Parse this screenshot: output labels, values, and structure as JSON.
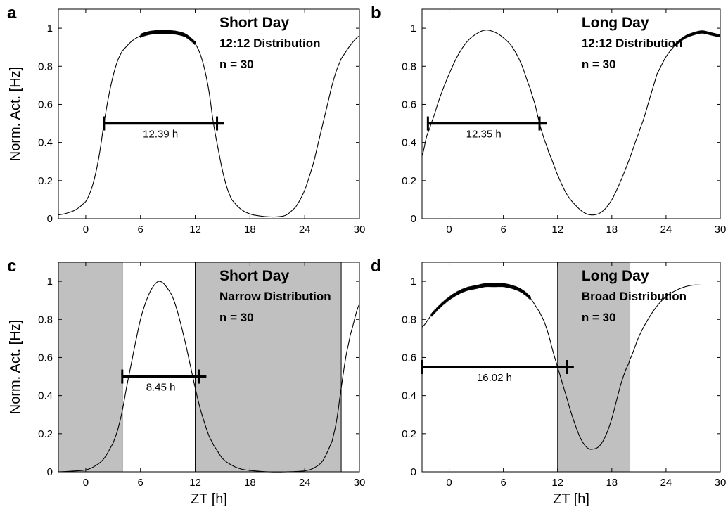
{
  "xlabel": "ZT [h]",
  "ylabel": "Norm. Act. [Hz]",
  "chart_data": [
    {
      "panel": "a",
      "type": "line",
      "title": "Short Day",
      "subtitle": "12:12 Distribution",
      "n_label": "n = 30",
      "xlim": [
        -3,
        30
      ],
      "ylim": [
        0,
        1.1
      ],
      "xticks": [
        0,
        6,
        12,
        18,
        24,
        30
      ],
      "yticks": [
        0,
        0.2,
        0.4,
        0.6,
        0.8,
        1
      ],
      "show_xlabel": false,
      "shaded_regions": [],
      "curve": {
        "x": [
          -3,
          -2,
          -1,
          0,
          0.5,
          1,
          1.5,
          2,
          2.5,
          3,
          3.5,
          4,
          5,
          6,
          7,
          8,
          9,
          10,
          11,
          12,
          12.5,
          13,
          13.5,
          14,
          14.5,
          15,
          15.5,
          16,
          17,
          18,
          19,
          20,
          21,
          22,
          23,
          23.5,
          24,
          24.5,
          25,
          25.5,
          26,
          26.5,
          27,
          27.5,
          28,
          29,
          30
        ],
        "y": [
          0.02,
          0.03,
          0.05,
          0.09,
          0.14,
          0.22,
          0.34,
          0.5,
          0.64,
          0.75,
          0.83,
          0.88,
          0.93,
          0.96,
          0.975,
          0.98,
          0.98,
          0.975,
          0.96,
          0.92,
          0.87,
          0.79,
          0.67,
          0.5,
          0.37,
          0.25,
          0.16,
          0.1,
          0.05,
          0.025,
          0.015,
          0.01,
          0.01,
          0.02,
          0.06,
          0.1,
          0.15,
          0.22,
          0.3,
          0.4,
          0.5,
          0.6,
          0.7,
          0.78,
          0.84,
          0.91,
          0.96
        ]
      },
      "wiggle": {
        "x_range": [
          6,
          12
        ],
        "amplitude": 0.01
      },
      "duration_bar": {
        "x_start": 2.0,
        "x_end": 14.39,
        "y": 0.5,
        "label": "12.39 h"
      }
    },
    {
      "panel": "b",
      "type": "line",
      "title": "Long Day",
      "subtitle": "12:12 Distribution",
      "n_label": "n = 30",
      "xlim": [
        -3,
        30
      ],
      "ylim": [
        0,
        1.1
      ],
      "xticks": [
        0,
        6,
        12,
        18,
        24,
        30
      ],
      "yticks": [
        0,
        0.2,
        0.4,
        0.6,
        0.8,
        1
      ],
      "show_xlabel": false,
      "shaded_regions": [],
      "curve": {
        "x": [
          -3,
          -2.5,
          -2,
          -1,
          0,
          1,
          2,
          3,
          4,
          5,
          6,
          7,
          8,
          9,
          9.5,
          10,
          10.5,
          11,
          12,
          13,
          14,
          15,
          16,
          17,
          18,
          19,
          20,
          21,
          21.5,
          22,
          22.5,
          23,
          24,
          25,
          26,
          27,
          28,
          29,
          30
        ],
        "y": [
          0.33,
          0.43,
          0.5,
          0.64,
          0.76,
          0.86,
          0.93,
          0.97,
          0.99,
          0.98,
          0.95,
          0.9,
          0.81,
          0.68,
          0.6,
          0.5,
          0.42,
          0.35,
          0.23,
          0.13,
          0.07,
          0.03,
          0.02,
          0.04,
          0.1,
          0.2,
          0.32,
          0.45,
          0.52,
          0.6,
          0.68,
          0.76,
          0.85,
          0.91,
          0.95,
          0.97,
          0.98,
          0.97,
          0.96
        ]
      },
      "wiggle": {
        "x_range": [
          25,
          30
        ],
        "amplitude": 0.008
      },
      "duration_bar": {
        "x_start": -2.35,
        "x_end": 10.0,
        "y": 0.5,
        "label": "12.35 h"
      }
    },
    {
      "panel": "c",
      "type": "line",
      "title": "Short Day",
      "subtitle": "Narrow Distribution",
      "n_label": "n = 30",
      "xlim": [
        -3,
        30
      ],
      "ylim": [
        0,
        1.1
      ],
      "xticks": [
        0,
        6,
        12,
        18,
        24,
        30
      ],
      "yticks": [
        0,
        0.2,
        0.4,
        0.6,
        0.8,
        1
      ],
      "show_xlabel": true,
      "shaded_regions": [
        [
          -3,
          4
        ],
        [
          12,
          28
        ]
      ],
      "curve": {
        "x": [
          -3,
          -1,
          0,
          1,
          2,
          3,
          3.5,
          4,
          4.5,
          5,
          5.5,
          6,
          6.5,
          7,
          7.5,
          8,
          8.5,
          9,
          9.5,
          10,
          10.5,
          11,
          11.5,
          12,
          12.5,
          13,
          13.5,
          14,
          15,
          16,
          17,
          18,
          20,
          22,
          24,
          25,
          26,
          27,
          27.5,
          28,
          28.5,
          29,
          30
        ],
        "y": [
          0.0,
          0.005,
          0.01,
          0.03,
          0.07,
          0.15,
          0.22,
          0.32,
          0.45,
          0.57,
          0.69,
          0.8,
          0.88,
          0.94,
          0.98,
          1.0,
          0.99,
          0.96,
          0.92,
          0.85,
          0.76,
          0.66,
          0.55,
          0.44,
          0.34,
          0.26,
          0.19,
          0.14,
          0.07,
          0.035,
          0.015,
          0.007,
          0.0,
          0.0,
          0.005,
          0.02,
          0.06,
          0.16,
          0.27,
          0.44,
          0.6,
          0.72,
          0.88
        ]
      },
      "wiggle": null,
      "duration_bar": {
        "x_start": 4.0,
        "x_end": 12.45,
        "y": 0.5,
        "label": "8.45 h"
      }
    },
    {
      "panel": "d",
      "type": "line",
      "title": "Long Day",
      "subtitle": "Broad Distribution",
      "n_label": "n = 30",
      "xlim": [
        -3,
        30
      ],
      "ylim": [
        0,
        1.1
      ],
      "xticks": [
        0,
        6,
        12,
        18,
        24,
        30
      ],
      "yticks": [
        0,
        0.2,
        0.4,
        0.6,
        0.8,
        1
      ],
      "show_xlabel": true,
      "shaded_regions": [
        [
          12,
          20
        ]
      ],
      "curve": {
        "x": [
          -3,
          -2,
          -1,
          0,
          1,
          2,
          3,
          4,
          5,
          6,
          7,
          8,
          9,
          10,
          10.5,
          11,
          11.5,
          12,
          12.5,
          13,
          13.5,
          14,
          14.5,
          15,
          15.5,
          16,
          16.5,
          17,
          17.5,
          18,
          18.5,
          19,
          19.5,
          20,
          21,
          22,
          23,
          24,
          25,
          26,
          27,
          28,
          29,
          30
        ],
        "y": [
          0.76,
          0.82,
          0.87,
          0.91,
          0.94,
          0.96,
          0.97,
          0.98,
          0.98,
          0.98,
          0.97,
          0.95,
          0.91,
          0.84,
          0.79,
          0.72,
          0.63,
          0.55,
          0.47,
          0.39,
          0.31,
          0.24,
          0.18,
          0.14,
          0.12,
          0.12,
          0.13,
          0.16,
          0.21,
          0.28,
          0.37,
          0.46,
          0.53,
          0.59,
          0.71,
          0.8,
          0.87,
          0.92,
          0.95,
          0.97,
          0.98,
          0.98,
          0.98,
          0.98
        ]
      },
      "wiggle": {
        "x_range": [
          -2,
          9
        ],
        "amplitude": 0.01
      },
      "duration_bar": {
        "x_start": -3.0,
        "x_end": 13.02,
        "y": 0.55,
        "label": "16.02 h"
      }
    }
  ]
}
